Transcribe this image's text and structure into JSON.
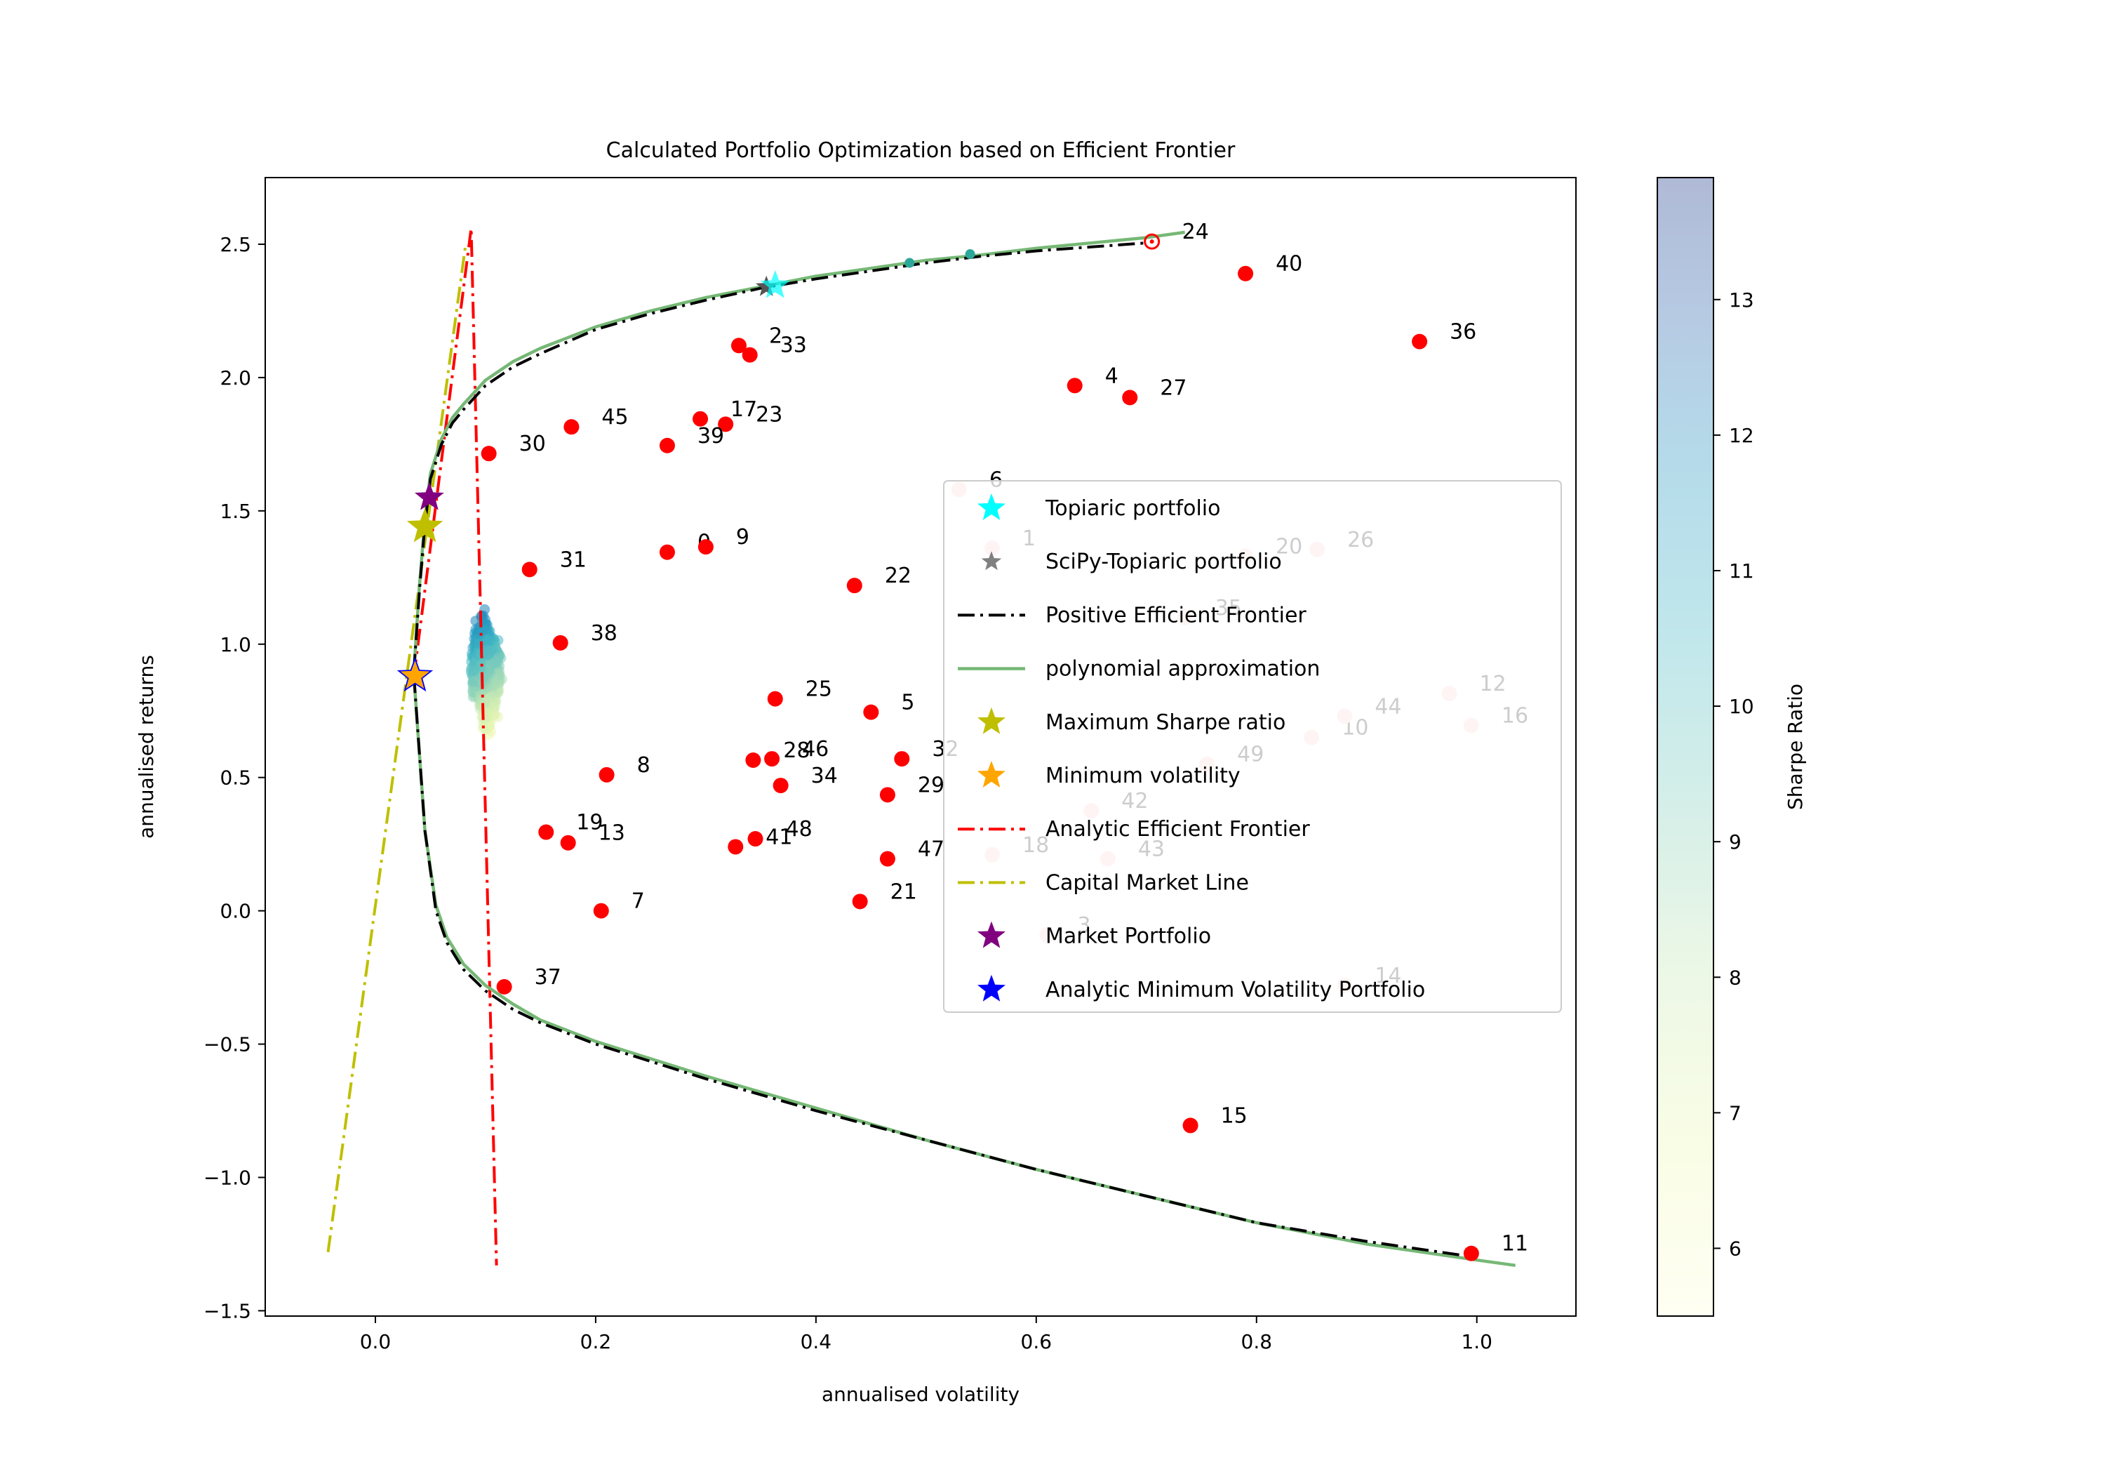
{
  "chart_data": {
    "type": "scatter",
    "title": "Calculated Portfolio Optimization based on Efficient Frontier",
    "xlabel": "annualised volatility",
    "ylabel": "annualised returns",
    "xlim": [
      -0.1,
      1.09
    ],
    "ylim": [
      -1.52,
      2.75
    ],
    "xticks": [
      0.0,
      0.2,
      0.4,
      0.6,
      0.8,
      1.0
    ],
    "xtick_labels": [
      "0.0",
      "0.2",
      "0.4",
      "0.6",
      "0.8",
      "1.0"
    ],
    "yticks": [
      -1.5,
      -1.0,
      -0.5,
      0.0,
      0.5,
      1.0,
      1.5,
      2.0,
      2.5
    ],
    "ytick_labels": [
      "−1.5",
      "−1.0",
      "−0.5",
      "0.0",
      "0.5",
      "1.0",
      "1.5",
      "2.0",
      "2.5"
    ],
    "grid": false,
    "legend_position": "center-right",
    "colorbar": {
      "label": "Sharpe Ratio",
      "range": [
        5.5,
        13.9
      ],
      "ticks": [
        6,
        7,
        8,
        9,
        10,
        11,
        12,
        13
      ],
      "tick_labels": [
        "6",
        "7",
        "8",
        "9",
        "10",
        "11",
        "12",
        "13"
      ],
      "colormap": "YlGnBu"
    },
    "legend": [
      {
        "label": "Topiaric portfolio",
        "marker": "star",
        "color": "#00ffff"
      },
      {
        "label": "SciPy-Topiaric portfolio",
        "marker": "star",
        "color": "#808080"
      },
      {
        "label": "Positive Efficient Frontier",
        "marker": "dashdot",
        "color": "#000000"
      },
      {
        "label": "polynomial approximation",
        "marker": "line",
        "color": "#76b876"
      },
      {
        "label": "Maximum Sharpe ratio",
        "marker": "star",
        "color": "#bfbf00"
      },
      {
        "label": "Minimum volatility",
        "marker": "star",
        "color": "#ffa500"
      },
      {
        "label": "Analytic Efficient Frontier",
        "marker": "dashdot",
        "color": "#ff0000"
      },
      {
        "label": "Capital Market Line",
        "marker": "dashdot",
        "color": "#bfbf00"
      },
      {
        "label": "Market Portfolio",
        "marker": "star",
        "color": "#800080"
      },
      {
        "label": "Analytic Minimum Volatility Portfolio",
        "marker": "star",
        "color": "#0000ff"
      }
    ],
    "legend_texts": [
      "Topiaric portfolio",
      "SciPy-Topiaric portfolio",
      "Positive Efficient Frontier",
      "polynomial approximation",
      "Maximum Sharpe ratio",
      "Minimum volatility",
      "Analytic Efficient Frontier",
      "Capital Market Line",
      "Market Portfolio",
      "Analytic Minimum Volatility Portfolio"
    ],
    "assets": [
      {
        "id": "0",
        "x": 0.265,
        "y": 1.345
      },
      {
        "id": "1",
        "x": 0.56,
        "y": 1.36
      },
      {
        "id": "2",
        "x": 0.33,
        "y": 2.12
      },
      {
        "id": "3",
        "x": 0.61,
        "y": -0.09
      },
      {
        "id": "4",
        "x": 0.635,
        "y": 1.97
      },
      {
        "id": "5",
        "x": 0.45,
        "y": 0.745
      },
      {
        "id": "6",
        "x": 0.53,
        "y": 1.58
      },
      {
        "id": "7",
        "x": 0.205,
        "y": 0.0
      },
      {
        "id": "8",
        "x": 0.21,
        "y": 0.51
      },
      {
        "id": "9",
        "x": 0.3,
        "y": 1.365
      },
      {
        "id": "10",
        "x": 0.85,
        "y": 0.65
      },
      {
        "id": "11",
        "x": 0.995,
        "y": -1.285
      },
      {
        "id": "12",
        "x": 0.975,
        "y": 0.815
      },
      {
        "id": "13",
        "x": 0.175,
        "y": 0.255
      },
      {
        "id": "14",
        "x": 0.88,
        "y": -0.28
      },
      {
        "id": "15",
        "x": 0.74,
        "y": -0.805
      },
      {
        "id": "16",
        "x": 0.995,
        "y": 0.695
      },
      {
        "id": "17",
        "x": 0.295,
        "y": 1.845
      },
      {
        "id": "18",
        "x": 0.56,
        "y": 0.21
      },
      {
        "id": "19",
        "x": 0.155,
        "y": 0.295
      },
      {
        "id": "20",
        "x": 0.79,
        "y": 1.33
      },
      {
        "id": "21",
        "x": 0.44,
        "y": 0.035
      },
      {
        "id": "22",
        "x": 0.435,
        "y": 1.22
      },
      {
        "id": "23",
        "x": 0.318,
        "y": 1.825
      },
      {
        "id": "24",
        "x": 0.705,
        "y": 2.51
      },
      {
        "id": "25",
        "x": 0.363,
        "y": 0.795
      },
      {
        "id": "26",
        "x": 0.855,
        "y": 1.355
      },
      {
        "id": "27",
        "x": 0.685,
        "y": 1.925
      },
      {
        "id": "28",
        "x": 0.343,
        "y": 0.565
      },
      {
        "id": "29",
        "x": 0.465,
        "y": 0.435
      },
      {
        "id": "30",
        "x": 0.103,
        "y": 1.715
      },
      {
        "id": "31",
        "x": 0.14,
        "y": 1.28
      },
      {
        "id": "32",
        "x": 0.478,
        "y": 0.57
      },
      {
        "id": "33",
        "x": 0.34,
        "y": 2.085
      },
      {
        "id": "34",
        "x": 0.368,
        "y": 0.47
      },
      {
        "id": "35",
        "x": 0.735,
        "y": 1.1
      },
      {
        "id": "36",
        "x": 0.948,
        "y": 2.135
      },
      {
        "id": "37",
        "x": 0.117,
        "y": -0.285
      },
      {
        "id": "38",
        "x": 0.168,
        "y": 1.005
      },
      {
        "id": "39",
        "x": 0.265,
        "y": 1.745
      },
      {
        "id": "40",
        "x": 0.79,
        "y": 2.39
      },
      {
        "id": "41",
        "x": 0.327,
        "y": 0.24
      },
      {
        "id": "42",
        "x": 0.65,
        "y": 0.375
      },
      {
        "id": "43",
        "x": 0.665,
        "y": 0.195
      },
      {
        "id": "44",
        "x": 0.88,
        "y": 0.73
      },
      {
        "id": "45",
        "x": 0.178,
        "y": 1.815
      },
      {
        "id": "46",
        "x": 0.36,
        "y": 0.57
      },
      {
        "id": "47",
        "x": 0.465,
        "y": 0.195
      },
      {
        "id": "48",
        "x": 0.345,
        "y": 0.27
      },
      {
        "id": "49",
        "x": 0.755,
        "y": 0.55
      }
    ],
    "positive_efficient_frontier": {
      "x": [
        0.035,
        0.04,
        0.045,
        0.05,
        0.06,
        0.07,
        0.08,
        0.1,
        0.125,
        0.15,
        0.2,
        0.25,
        0.3,
        0.35,
        0.4,
        0.45,
        0.5,
        0.55,
        0.6,
        0.65,
        0.7
      ],
      "y": [
        0.9,
        1.2,
        1.45,
        1.62,
        1.75,
        1.83,
        1.88,
        1.97,
        2.04,
        2.09,
        2.18,
        2.24,
        2.29,
        2.335,
        2.37,
        2.4,
        2.43,
        2.455,
        2.475,
        2.49,
        2.505
      ]
    },
    "negative_efficient_frontier": {
      "x": [
        0.035,
        0.045,
        0.055,
        0.065,
        0.08,
        0.1,
        0.125,
        0.15,
        0.2,
        0.3,
        0.4,
        0.5,
        0.6,
        0.7,
        0.8,
        0.9,
        1.0
      ],
      "y": [
        0.88,
        0.3,
        0.0,
        -0.12,
        -0.22,
        -0.3,
        -0.37,
        -0.42,
        -0.5,
        -0.63,
        -0.75,
        -0.86,
        -0.97,
        -1.07,
        -1.17,
        -1.24,
        -1.3
      ]
    },
    "polynomial_approximation_upper": {
      "x": [
        0.035,
        0.04,
        0.045,
        0.05,
        0.06,
        0.07,
        0.08,
        0.1,
        0.125,
        0.15,
        0.2,
        0.25,
        0.3,
        0.35,
        0.4,
        0.45,
        0.5,
        0.55,
        0.6,
        0.65,
        0.7,
        0.735
      ],
      "y": [
        0.9,
        1.22,
        1.47,
        1.64,
        1.77,
        1.85,
        1.9,
        1.99,
        2.06,
        2.11,
        2.19,
        2.25,
        2.3,
        2.34,
        2.38,
        2.41,
        2.44,
        2.46,
        2.485,
        2.505,
        2.525,
        2.545
      ]
    },
    "polynomial_approximation_lower": {
      "x": [
        0.035,
        0.045,
        0.055,
        0.065,
        0.08,
        0.1,
        0.125,
        0.15,
        0.2,
        0.3,
        0.4,
        0.5,
        0.6,
        0.7,
        0.8,
        0.9,
        1.0,
        1.035
      ],
      "y": [
        0.88,
        0.3,
        0.02,
        -0.1,
        -0.2,
        -0.28,
        -0.35,
        -0.41,
        -0.49,
        -0.62,
        -0.74,
        -0.86,
        -0.97,
        -1.07,
        -1.17,
        -1.25,
        -1.31,
        -1.33
      ]
    },
    "analytic_efficient_frontier": {
      "x": [
        0.035,
        0.087,
        0.11
      ],
      "y": [
        0.88,
        2.56,
        -1.33
      ]
    },
    "capital_market_line": {
      "x": [
        -0.043,
        0.082
      ],
      "y": [
        -1.28,
        2.5
      ]
    },
    "topiaric_portfolio": {
      "x": 0.363,
      "y": 2.345
    },
    "scipy_topiaric_portfolio": {
      "x": 0.355,
      "y": 2.34
    },
    "maximum_sharpe_ratio": {
      "x": 0.045,
      "y": 1.44
    },
    "minimum_volatility": {
      "x": 0.036,
      "y": 0.88
    },
    "market_portfolio": {
      "x": 0.049,
      "y": 1.55
    },
    "analytic_minimum_volatility_portfolio": {
      "x": 0.036,
      "y": 0.88
    },
    "random_portfolios": {
      "x_range": [
        0.07,
        0.125
      ],
      "y_range": [
        0.6,
        1.2
      ],
      "sharpe_range": [
        5.5,
        13.9
      ]
    }
  },
  "colors": {
    "asset_point": "#ff0000",
    "asset_point_faded": "#ffc8c8",
    "positive_frontier": "#000000",
    "polynomial": "#76b876",
    "analytic_frontier": "#ff0000",
    "capital_market_line": "#bfbf00"
  }
}
